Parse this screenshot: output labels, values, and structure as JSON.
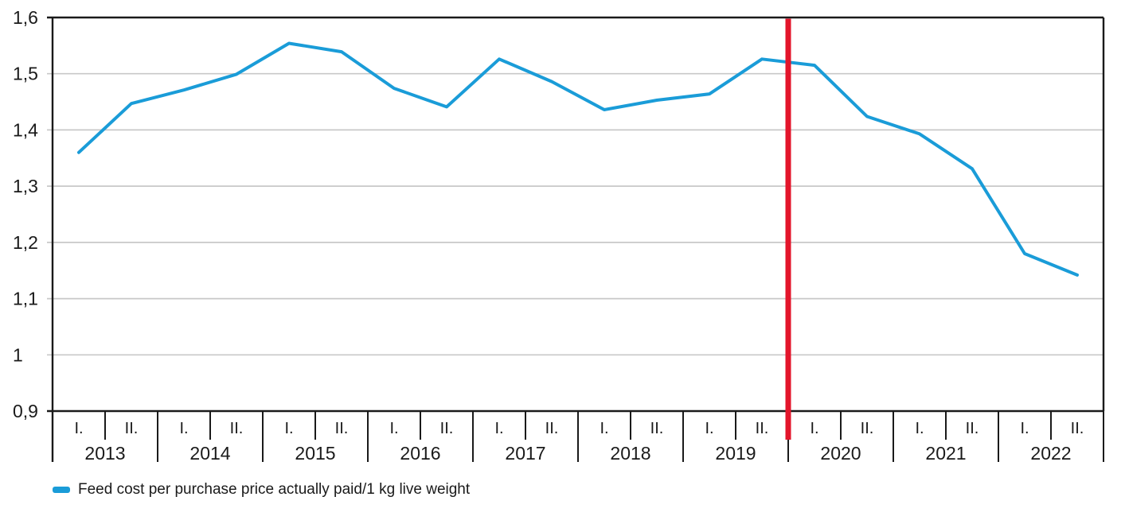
{
  "chart_data": {
    "type": "line",
    "title": "",
    "ylim": [
      0.9,
      1.6
    ],
    "y_tick_step": 0.1,
    "y_ticks": [
      {
        "value": 1.6,
        "label": "1,6"
      },
      {
        "value": 1.5,
        "label": "1,5"
      },
      {
        "value": 1.4,
        "label": "1,4"
      },
      {
        "value": 1.3,
        "label": "1,3"
      },
      {
        "value": 1.2,
        "label": "1,2"
      },
      {
        "value": 1.1,
        "label": "1,1"
      },
      {
        "value": 1.0,
        "label": "1"
      },
      {
        "value": 0.9,
        "label": "0,9"
      }
    ],
    "x_years": [
      "2013",
      "2014",
      "2015",
      "2016",
      "2017",
      "2018",
      "2019",
      "2020",
      "2021",
      "2022"
    ],
    "x_half_year_labels": [
      "I.",
      "II."
    ],
    "categories": [
      "2013 I.",
      "2013 II.",
      "2014 I.",
      "2014 II.",
      "2015 I.",
      "2015 II.",
      "2016 I.",
      "2016 II.",
      "2017 I.",
      "2017 II.",
      "2018 I.",
      "2018 II.",
      "2019 I.",
      "2019 II.",
      "2020 I.",
      "2020 II.",
      "2021 I.",
      "2021 II.",
      "2022 I.",
      "2022 II."
    ],
    "series": [
      {
        "name": "Feed cost per purchase price actually paid/1 kg live weight",
        "color": "#1A9CD8",
        "values": [
          1.36,
          1.447,
          1.471,
          1.499,
          1.554,
          1.539,
          1.474,
          1.441,
          1.526,
          1.486,
          1.436,
          1.453,
          1.464,
          1.526,
          1.515,
          1.424,
          1.393,
          1.331,
          1.18,
          1.142
        ]
      }
    ],
    "legend": [
      {
        "label": "Feed cost per purchase price actually paid/1 kg live weight",
        "color": "#1A9CD8"
      }
    ],
    "legend_position": "bottom-left",
    "grid": "horizontal",
    "annotations": [
      {
        "type": "vline",
        "color": "#E3152B",
        "at_category_boundary": "2019 II. / 2020 I.",
        "boundary_index": 14
      }
    ],
    "colors": {
      "line": "#1A9CD8",
      "event_line": "#E3152B",
      "grid": "#C8C8C8",
      "axis": "#1A1A1A",
      "text": "#1A1A1A",
      "background": "#FFFFFF"
    }
  }
}
